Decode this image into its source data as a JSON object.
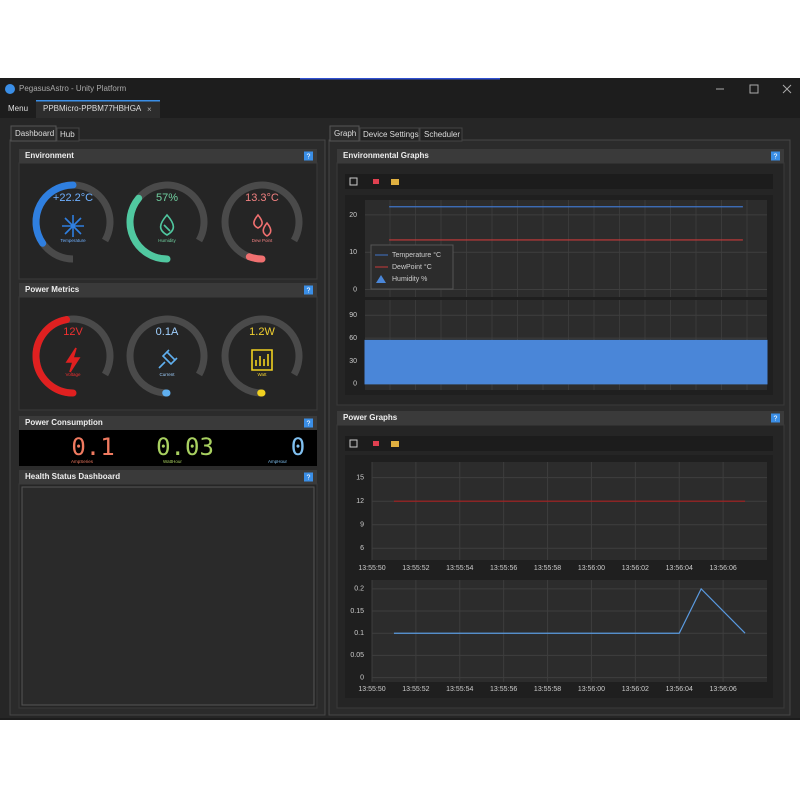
{
  "window": {
    "title": "PegasusAstro - Unity Platform"
  },
  "menu": {
    "label": "Menu",
    "device_tab": "PPBMicro-PPBM77HBHGA",
    "close": "×"
  },
  "help": "?",
  "left_tabs": [
    "Dashboard",
    "Hub"
  ],
  "right_tabs": [
    "Graph",
    "Device Settings",
    "Scheduler"
  ],
  "environment": {
    "title": "Environment",
    "gauges": [
      {
        "value": "+22.2°C",
        "label": "Temperature"
      },
      {
        "value": "57%",
        "label": "Humidity"
      },
      {
        "value": "13.3°C",
        "label": "Dew Point"
      }
    ]
  },
  "power_metrics": {
    "title": "Power Metrics",
    "gauges": [
      {
        "value": "12V",
        "label": "Voltage"
      },
      {
        "value": "0.1A",
        "label": "Current"
      },
      {
        "value": "1.2W",
        "label": "Watt"
      }
    ]
  },
  "power_consumption": {
    "title": "Power Consumption",
    "displays": [
      {
        "value": "0.1",
        "label": "AmpSeries"
      },
      {
        "value": "0.03",
        "label": "WattHour"
      },
      {
        "value": "0",
        "label": "AmpHour"
      }
    ]
  },
  "health": {
    "title": "Health Status Dashboard"
  },
  "environmental_graphs": {
    "title": "Environmental Graphs"
  },
  "power_graphs": {
    "title": "Power Graphs"
  },
  "chart_data": [
    {
      "type": "line",
      "series": [
        {
          "name": "Temperature °C",
          "color": "#3f74c8",
          "values": [
            22.2,
            22.2
          ]
        },
        {
          "name": "DewPoint °C",
          "color": "#c83a3a",
          "values": [
            13.3,
            13.3
          ]
        }
      ],
      "ylim": [
        -2,
        24
      ],
      "yticks": [
        0,
        10,
        20
      ],
      "grid": true,
      "legend": "lower left"
    },
    {
      "type": "area",
      "series": [
        {
          "name": "Humidity %",
          "color": "#4a86d8",
          "values": [
            57,
            57
          ]
        }
      ],
      "ylim": [
        -8,
        110
      ],
      "yticks": [
        0,
        30,
        60,
        90
      ],
      "grid": true
    },
    {
      "type": "line",
      "x": [
        "13:55:51",
        "13:56:07"
      ],
      "series": [
        {
          "color": "#a82020",
          "values": [
            12,
            12
          ]
        }
      ],
      "xlim": [
        "13:55:50",
        "13:56:08"
      ],
      "xticks": [
        "13:55:50",
        "13:55:52",
        "13:55:54",
        "13:55:56",
        "13:55:58",
        "13:56:00",
        "13:56:02",
        "13:56:04",
        "13:56:06"
      ],
      "ylim": [
        4.5,
        17
      ],
      "yticks": [
        6,
        9,
        12,
        15
      ],
      "grid": true
    },
    {
      "type": "line",
      "x": [
        "13:55:51",
        "13:56:04",
        "13:56:05",
        "13:56:07"
      ],
      "series": [
        {
          "color": "#5a9ae0",
          "values": [
            0.1,
            0.1,
            0.2,
            0.1
          ]
        }
      ],
      "xlim": [
        "13:55:50",
        "13:56:08"
      ],
      "xticks": [
        "13:55:50",
        "13:55:52",
        "13:55:54",
        "13:55:56",
        "13:55:58",
        "13:56:00",
        "13:56:02",
        "13:56:04",
        "13:56:06"
      ],
      "ylim": [
        -0.01,
        0.22
      ],
      "yticks": [
        0,
        0.05,
        0.1,
        0.15,
        0.2
      ],
      "grid": true
    }
  ]
}
